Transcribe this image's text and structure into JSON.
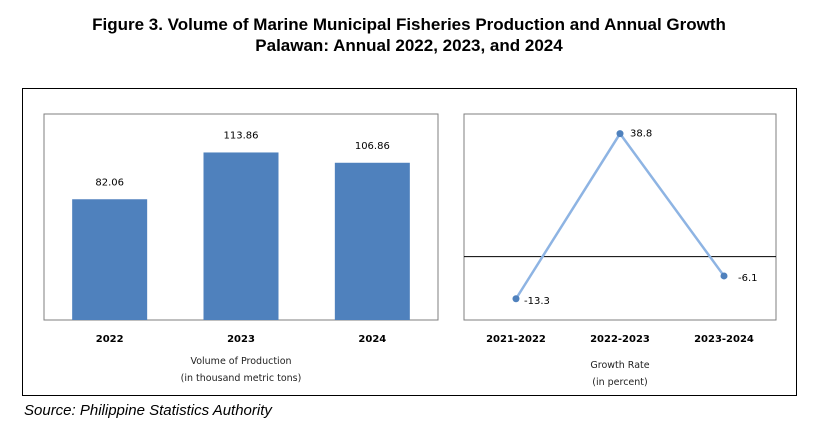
{
  "figure": {
    "title_line1": "Figure 3. Volume of Marine Municipal Fisheries Production and Annual Growth",
    "title_line2": "Palawan: Annual 2022, 2023, and 2024",
    "source": "Source: Philippine Statistics Authority"
  },
  "chart_data": [
    {
      "type": "bar",
      "categories": [
        "2022",
        "2023",
        "2024"
      ],
      "values": [
        82.06,
        113.86,
        106.86
      ],
      "data_labels": [
        "82.06",
        "113.86",
        "106.86"
      ],
      "xlabel_line1": "Volume of Production",
      "xlabel_line2": "(in thousand metric tons)",
      "ylim": [
        0,
        140
      ],
      "grid": false,
      "bar_color": "#4f81bd"
    },
    {
      "type": "line",
      "categories": [
        "2021-2022",
        "2022-2023",
        "2023-2024"
      ],
      "values": [
        -13.3,
        38.8,
        -6.1
      ],
      "data_labels": [
        "-13.3",
        "38.8",
        "-6.1"
      ],
      "xlabel_line1": "Growth Rate",
      "xlabel_line2": "(in percent)",
      "ylim": [
        -20,
        45
      ],
      "baseline": 0,
      "grid": false,
      "line_color": "#8eb4e3",
      "marker_color": "#4f81bd"
    }
  ]
}
